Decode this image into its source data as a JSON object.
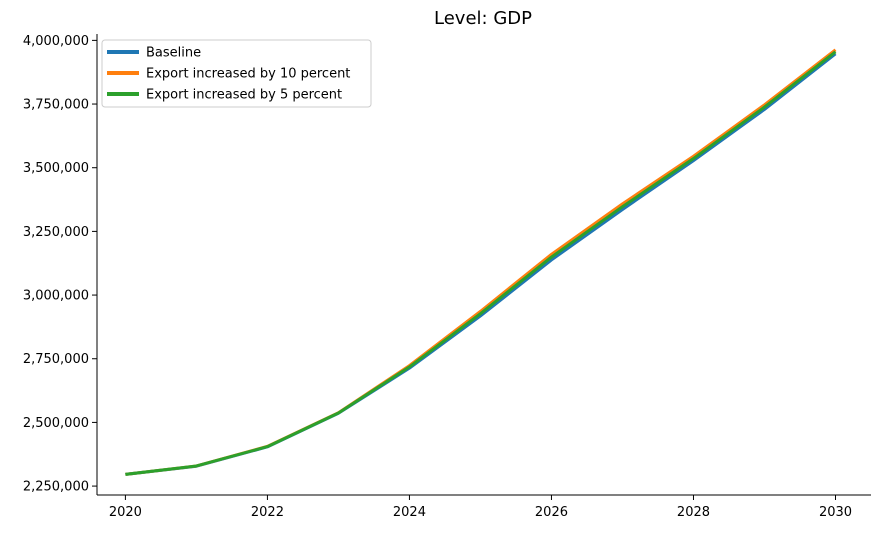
{
  "chart_data": {
    "type": "line",
    "title": "Level: GDP",
    "xlabel": "",
    "ylabel": "",
    "x": [
      2020,
      2021,
      2022,
      2023,
      2024,
      2025,
      2026,
      2027,
      2028,
      2029,
      2030
    ],
    "xlim": [
      2019.6,
      2030.5
    ],
    "ylim": [
      2215000,
      4025000
    ],
    "xticks": [
      2020,
      2022,
      2024,
      2026,
      2028,
      2030
    ],
    "xtick_labels": [
      "2020",
      "2022",
      "2024",
      "2026",
      "2028",
      "2030"
    ],
    "yticks": [
      2250000,
      2500000,
      2750000,
      3000000,
      3250000,
      3500000,
      3750000,
      4000000
    ],
    "ytick_labels": [
      "2,250,000",
      "2,500,000",
      "2,750,000",
      "3,000,000",
      "3,250,000",
      "3,500,000",
      "3,750,000",
      "4,000,000"
    ],
    "grid": false,
    "legend_position": "top-left",
    "series": [
      {
        "name": "Baseline",
        "color": "#1f77b4",
        "values": [
          2296000,
          2328000,
          2404000,
          2536000,
          2713000,
          2918000,
          3138000,
          3336000,
          3528000,
          3729000,
          3947000
        ]
      },
      {
        "name": "Export increased by 10 percent",
        "color": "#ff7f0e",
        "values": [
          2296000,
          2329000,
          2406000,
          2538000,
          2723000,
          2936000,
          3160000,
          3358000,
          3545000,
          3747000,
          3963000
        ]
      },
      {
        "name": "Export increased by 5 percent",
        "color": "#2ca02c",
        "values": [
          2296000,
          2329000,
          2405000,
          2537000,
          2718000,
          2927000,
          3149000,
          3347000,
          3536000,
          3738000,
          3955000
        ]
      }
    ]
  }
}
